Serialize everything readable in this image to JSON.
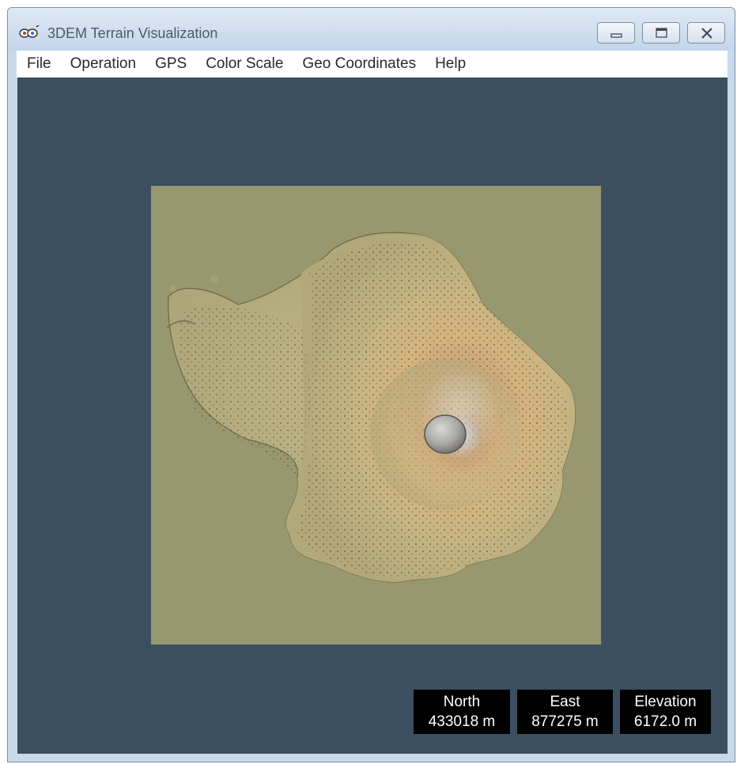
{
  "window": {
    "title": "3DEM Terrain Visualization",
    "icon": "3dem-app-icon",
    "controls": [
      "minimize-icon",
      "maximize-icon",
      "close-icon"
    ]
  },
  "menu": {
    "items": [
      "File",
      "Operation",
      "GPS",
      "Color Scale",
      "Geo Coordinates",
      "Help"
    ]
  },
  "colors": {
    "viewport_background": "#3b4f61",
    "terrain_base": "#989870",
    "readout_background": "#000000",
    "readout_text": "#ffffff"
  },
  "readouts": {
    "north": {
      "label": "North",
      "value": "433018 m"
    },
    "east": {
      "label": "East",
      "value": "877275 m"
    },
    "elevation": {
      "label": "Elevation",
      "value": "6172.0 m"
    }
  }
}
